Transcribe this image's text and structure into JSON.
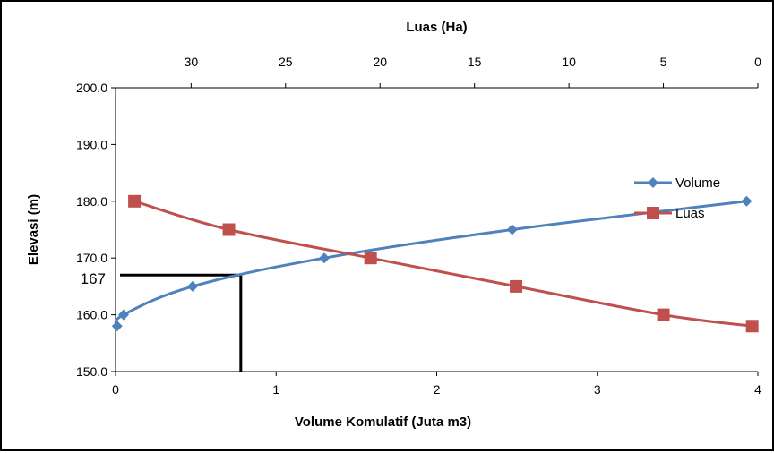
{
  "chart_data": {
    "type": "line",
    "xlabel": "Volume Komulatif (Juta m3)",
    "x2label": "Luas (Ha)",
    "ylabel": "Elevasi (m)",
    "xlim": [
      0,
      4
    ],
    "x2lim": [
      0,
      34
    ],
    "x2_reversed": true,
    "ylim": [
      150,
      200
    ],
    "x_ticks": [
      "0",
      "1",
      "2",
      "3",
      "4"
    ],
    "x2_ticks": [
      "30",
      "25",
      "20",
      "15",
      "10",
      "5",
      "0"
    ],
    "y_ticks": [
      "150.0",
      "160.0",
      "170.0",
      "180.0",
      "190.0",
      "200.0"
    ],
    "grid": false,
    "legend_position": "right",
    "series": [
      {
        "name": "Volume",
        "axis": "bottom",
        "color": "#4F81BD",
        "marker": "diamond",
        "points": [
          {
            "x": 0.01,
            "y": 158
          },
          {
            "x": 0.05,
            "y": 160
          },
          {
            "x": 0.48,
            "y": 165
          },
          {
            "x": 1.3,
            "y": 170
          },
          {
            "x": 2.47,
            "y": 175
          },
          {
            "x": 3.93,
            "y": 180
          }
        ]
      },
      {
        "name": "Luas",
        "axis": "top",
        "color": "#C0504D",
        "marker": "square",
        "points": [
          {
            "x": 33.0,
            "y": 180
          },
          {
            "x": 28.0,
            "y": 175
          },
          {
            "x": 20.5,
            "y": 170
          },
          {
            "x": 12.8,
            "y": 165
          },
          {
            "x": 5.0,
            "y": 160
          },
          {
            "x": 0.3,
            "y": 158
          }
        ]
      }
    ],
    "annotation": {
      "label": "167",
      "y": 167,
      "x": 0.78,
      "color": "#000000"
    }
  }
}
